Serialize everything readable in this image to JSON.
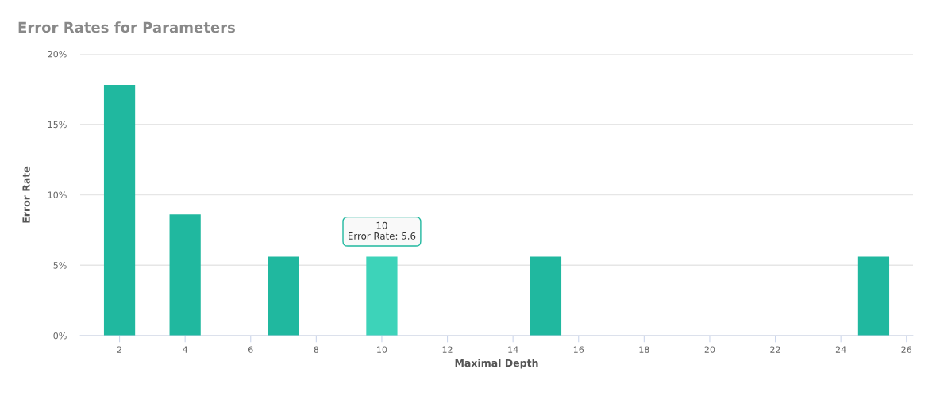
{
  "chart_data": {
    "type": "bar",
    "title": "Error Rates for Parameters",
    "xlabel": "Maximal Depth",
    "ylabel": "Error Rate",
    "x": [
      2,
      4,
      7,
      10,
      15,
      25
    ],
    "values": [
      17.8,
      8.6,
      5.6,
      5.6,
      5.6,
      5.6
    ],
    "colors": [
      "#20b89f",
      "#20b89f",
      "#20b89f",
      "#3dd3b9",
      "#20b89f",
      "#20b89f"
    ],
    "xlim": [
      0.8,
      26.2
    ],
    "xticks": [
      2,
      4,
      6,
      8,
      10,
      12,
      14,
      16,
      18,
      20,
      22,
      24,
      26
    ],
    "ylim": [
      0,
      20
    ],
    "yticks": [
      {
        "value": 0,
        "label": "0%"
      },
      {
        "value": 5,
        "label": "5%"
      },
      {
        "value": 10,
        "label": "10%"
      },
      {
        "value": 15,
        "label": "15%"
      },
      {
        "value": 20,
        "label": "20%"
      }
    ],
    "grid": "y",
    "annotations": [
      {
        "text": "10\nError Rate: 5.6",
        "x": 10,
        "y": 5.6
      }
    ]
  }
}
